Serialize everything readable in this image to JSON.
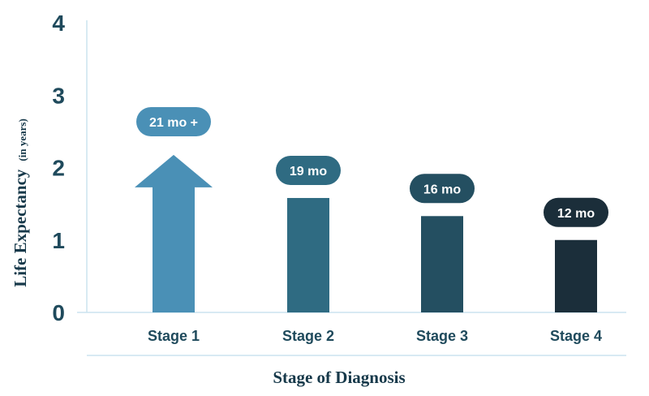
{
  "chart_data": {
    "type": "bar",
    "title": "",
    "xlabel": "Stage of Diagnosis",
    "ylabel": "Life Expectancy",
    "ylabel_suffix": "(in years)",
    "ylim": [
      0,
      4
    ],
    "yticks": [
      "0",
      "1",
      "2",
      "3",
      "4"
    ],
    "categories": [
      "Stage 1",
      "Stage 2",
      "Stage 3",
      "Stage 4"
    ],
    "values": [
      1.75,
      1.58,
      1.33,
      1.0
    ],
    "data_labels": [
      "21 mo +",
      "19 mo",
      "16 mo",
      "12 mo"
    ],
    "colors": [
      "#4a90b6",
      "#2f6b82",
      "#244f61",
      "#1b2e3a"
    ],
    "first_bar_shape": "arrow-up",
    "grid": false
  }
}
